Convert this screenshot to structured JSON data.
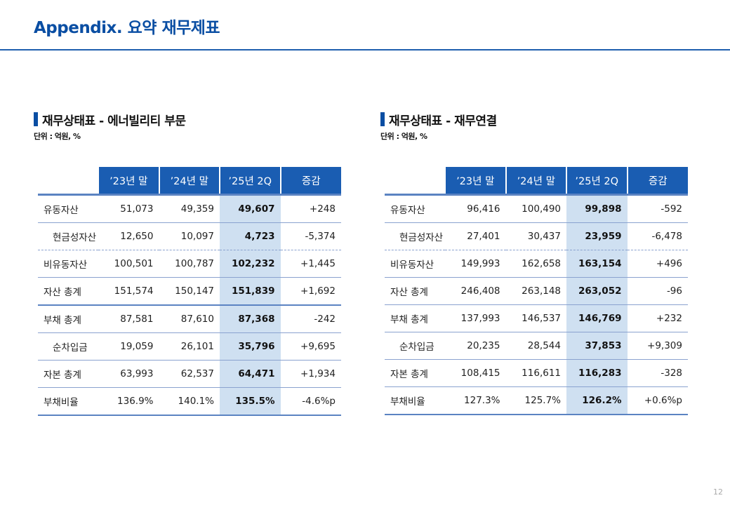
{
  "page_title": "Appendix. 요약 재무제표",
  "page_number": "12",
  "left": {
    "title": "재무상태표 - 에너빌리티 부문",
    "unit": "단위 : 억원, %",
    "headers": [
      "’23년 말",
      "’24년 말",
      "’25년 2Q",
      "증감"
    ],
    "rows": [
      {
        "label": "유동자산",
        "values": [
          "51,073",
          "49,359",
          "49,607",
          "+248"
        ]
      },
      {
        "label": "현금성자산",
        "values": [
          "12,650",
          "10,097",
          "4,723",
          "-5,374"
        ]
      },
      {
        "label": "비유동자산",
        "values": [
          "100,501",
          "100,787",
          "102,232",
          "+1,445"
        ]
      },
      {
        "label": "자산 총계",
        "values": [
          "151,574",
          "150,147",
          "151,839",
          "+1,692"
        ]
      },
      {
        "label": "부채 총계",
        "values": [
          "87,581",
          "87,610",
          "87,368",
          "-242"
        ]
      },
      {
        "label": "순차입금",
        "values": [
          "19,059",
          "26,101",
          "35,796",
          "+9,695"
        ]
      },
      {
        "label": "자본 총계",
        "values": [
          "63,993",
          "62,537",
          "64,471",
          "+1,934"
        ]
      },
      {
        "label": "부채비율",
        "values": [
          "136.9%",
          "140.1%",
          "135.5%",
          "-4.6%p"
        ]
      }
    ]
  },
  "right": {
    "title": "재무상태표 - 재무연결",
    "unit": "단위 : 억원, %",
    "headers": [
      "’23년 말",
      "’24년 말",
      "’25년 2Q",
      "증감"
    ],
    "rows": [
      {
        "label": "유동자산",
        "values": [
          "96,416",
          "100,490",
          "99,898",
          "-592"
        ]
      },
      {
        "label": "현금성자산",
        "values": [
          "27,401",
          "30,437",
          "23,959",
          "-6,478"
        ]
      },
      {
        "label": "비유동자산",
        "values": [
          "149,993",
          "162,658",
          "163,154",
          "+496"
        ]
      },
      {
        "label": "자산 총계",
        "values": [
          "246,408",
          "263,148",
          "263,052",
          "-96"
        ]
      },
      {
        "label": "부채 총계",
        "values": [
          "137,993",
          "146,537",
          "146,769",
          "+232"
        ]
      },
      {
        "label": "순차입금",
        "values": [
          "20,235",
          "28,544",
          "37,853",
          "+9,309"
        ]
      },
      {
        "label": "자본 총계",
        "values": [
          "108,415",
          "116,611",
          "116,283",
          "-328"
        ]
      },
      {
        "label": "부채비율",
        "values": [
          "127.3%",
          "125.7%",
          "126.2%",
          "+0.6%p"
        ]
      }
    ]
  }
}
